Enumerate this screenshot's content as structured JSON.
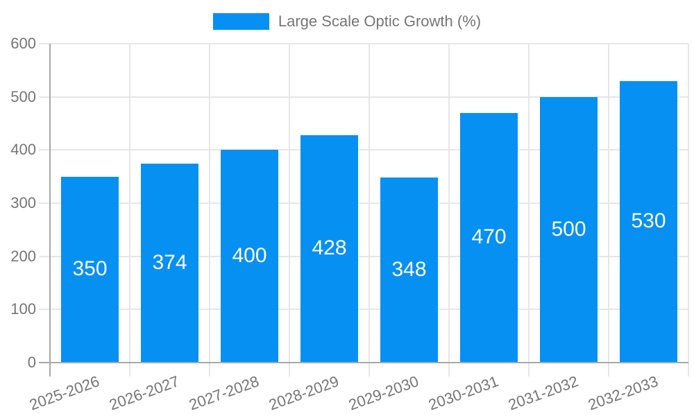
{
  "legend": {
    "label": "Large Scale Optic Growth (%)"
  },
  "chart_data": {
    "type": "bar",
    "title": "",
    "xlabel": "",
    "ylabel": "",
    "categories": [
      "2025-2026",
      "2026-2027",
      "2027-2028",
      "2028-2029",
      "2029-2030",
      "2030-2031",
      "2031-2032",
      "2032-2033"
    ],
    "values": [
      350,
      374,
      400,
      428,
      348,
      470,
      500,
      530
    ],
    "series_name": "Large Scale Optic Growth (%)",
    "ylim": [
      0,
      600
    ],
    "y_ticks": [
      0,
      100,
      200,
      300,
      400,
      500,
      600
    ],
    "grid": true,
    "legend_position": "top-center",
    "colors": {
      "bar": "#0690f2",
      "bar_value_label": "#ffffff",
      "axis_text": "#757575",
      "gridline": "#e6e6e6",
      "axis_line": "#a8a8a8"
    }
  }
}
